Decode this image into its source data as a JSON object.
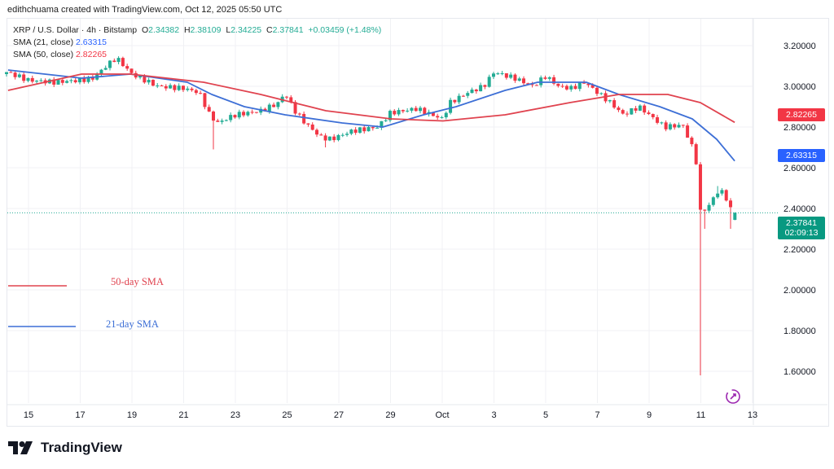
{
  "credit": "edithchuama created with TradingView.com, Oct 12, 2025 05:50 UTC",
  "header": {
    "symbol": "XRP / U.S. Dollar · 4h · Bitstamp",
    "o_label": "O",
    "o": "2.34382",
    "h_label": "H",
    "h": "2.38109",
    "l_label": "L",
    "l": "2.34225",
    "c_label": "C",
    "c": "2.37841",
    "change": "+0.03459 (+1.48%)",
    "sma21_label": "SMA (21, close)",
    "sma21_value": "2.63315",
    "sma50_label": "SMA (50, close)",
    "sma50_value": "2.82265"
  },
  "price_tags": {
    "sma50": "2.82265",
    "sma21": "2.63315",
    "last": "2.37841",
    "countdown": "02:09:13"
  },
  "annotations": {
    "sma50": "50-day SMA",
    "sma21": "21-day SMA"
  },
  "brand": "TradingView",
  "colors": {
    "up": "#22ab94",
    "down": "#f23645",
    "sma50": "#e0434f",
    "sma21": "#3d6fd6",
    "grid": "#f0f1f4"
  },
  "chart_data": {
    "type": "candlestick",
    "title": "XRP / U.S. Dollar · 4h · Bitstamp",
    "ylim": [
      1.45,
      3.3
    ],
    "y_ticks": [
      "3.20000",
      "3.00000",
      "2.80000",
      "2.60000",
      "2.40000",
      "2.20000",
      "2.00000",
      "1.80000",
      "1.60000"
    ],
    "y_tick_values": [
      3.2,
      3.0,
      2.8,
      2.6,
      2.4,
      2.2,
      2.0,
      1.8,
      1.6
    ],
    "x_ticks": [
      "15",
      "17",
      "19",
      "21",
      "23",
      "25",
      "27",
      "29",
      "Oct",
      "3",
      "5",
      "7",
      "9",
      "11",
      "13"
    ],
    "x_tick_days": [
      1,
      3,
      5,
      7,
      9,
      11,
      13,
      15,
      17,
      19,
      21,
      23,
      25,
      27,
      29
    ],
    "x_unit": "days since Sep 14 2025",
    "candles_per_day": 6,
    "close_anchors": [
      [
        0.15,
        3.07
      ],
      [
        1,
        3.03
      ],
      [
        2,
        3.02
      ],
      [
        3,
        3.03
      ],
      [
        3.5,
        3.04
      ],
      [
        4,
        3.1
      ],
      [
        4.4,
        3.14
      ],
      [
        5,
        3.06
      ],
      [
        5.5,
        3.03
      ],
      [
        6,
        3.0
      ],
      [
        7,
        2.99
      ],
      [
        7.6,
        2.97
      ],
      [
        8,
        2.86
      ],
      [
        8.3,
        2.82
      ],
      [
        9,
        2.86
      ],
      [
        10,
        2.88
      ],
      [
        10.7,
        2.92
      ],
      [
        10.9,
        2.97
      ],
      [
        11.3,
        2.88
      ],
      [
        11.7,
        2.82
      ],
      [
        12.3,
        2.75
      ],
      [
        12.7,
        2.74
      ],
      [
        13.5,
        2.78
      ],
      [
        14.5,
        2.8
      ],
      [
        15,
        2.87
      ],
      [
        16,
        2.89
      ],
      [
        17,
        2.84
      ],
      [
        17.3,
        2.92
      ],
      [
        18,
        2.97
      ],
      [
        18.6,
        3.0
      ],
      [
        19,
        3.07
      ],
      [
        19.8,
        3.04
      ],
      [
        20.5,
        3.0
      ],
      [
        21,
        3.05
      ],
      [
        21.5,
        3.0
      ],
      [
        22,
        2.99
      ],
      [
        22.5,
        3.02
      ],
      [
        23,
        2.97
      ],
      [
        23.5,
        2.92
      ],
      [
        24,
        2.86
      ],
      [
        24.6,
        2.9
      ],
      [
        25,
        2.86
      ],
      [
        25.6,
        2.8
      ],
      [
        26.3,
        2.81
      ],
      [
        26.6,
        2.72
      ],
      [
        26.8,
        2.66
      ],
      [
        26.95,
        2.38
      ],
      [
        27.3,
        2.41
      ],
      [
        27.6,
        2.48
      ],
      [
        27.9,
        2.48
      ],
      [
        28.1,
        2.41
      ],
      [
        28.3,
        2.35
      ],
      [
        28.45,
        2.37841
      ]
    ],
    "wick_overrides": [
      {
        "day": 8.15,
        "low": 2.69
      },
      {
        "day": 12.5,
        "low": 2.7
      },
      {
        "day": 26.95,
        "low": 1.58
      },
      {
        "day": 27.15,
        "low": 2.3
      },
      {
        "day": 27.65,
        "high": 2.51
      },
      {
        "day": 28.2,
        "low": 2.3
      }
    ],
    "last_candle": {
      "o": 2.34382,
      "h": 2.38109,
      "l": 2.34225,
      "c": 2.37841
    },
    "series": [
      {
        "name": "SMA (21, close)",
        "points": [
          [
            0.21,
            3.08
          ],
          [
            3.05,
            3.04
          ],
          [
            4.94,
            3.06
          ],
          [
            7.14,
            3.02
          ],
          [
            8.09,
            2.96
          ],
          [
            9.35,
            2.9
          ],
          [
            10.92,
            2.86
          ],
          [
            13.13,
            2.82
          ],
          [
            14.7,
            2.8
          ],
          [
            16.28,
            2.86
          ],
          [
            17.54,
            2.9
          ],
          [
            19.43,
            2.98
          ],
          [
            20.69,
            3.02
          ],
          [
            22.57,
            3.02
          ],
          [
            23.83,
            2.96
          ],
          [
            25.41,
            2.9
          ],
          [
            26.67,
            2.84
          ],
          [
            27.61,
            2.74
          ],
          [
            28.31,
            2.63315
          ]
        ]
      },
      {
        "name": "SMA (50, close)",
        "points": [
          [
            0.21,
            2.98
          ],
          [
            3.05,
            3.06
          ],
          [
            4.94,
            3.06
          ],
          [
            7.77,
            3.02
          ],
          [
            9.98,
            2.96
          ],
          [
            12.5,
            2.88
          ],
          [
            15.02,
            2.84
          ],
          [
            17.03,
            2.83
          ],
          [
            19.43,
            2.86
          ],
          [
            21.94,
            2.92
          ],
          [
            23.83,
            2.96
          ],
          [
            25.72,
            2.96
          ],
          [
            26.98,
            2.92
          ],
          [
            28.31,
            2.82265
          ]
        ]
      }
    ]
  }
}
